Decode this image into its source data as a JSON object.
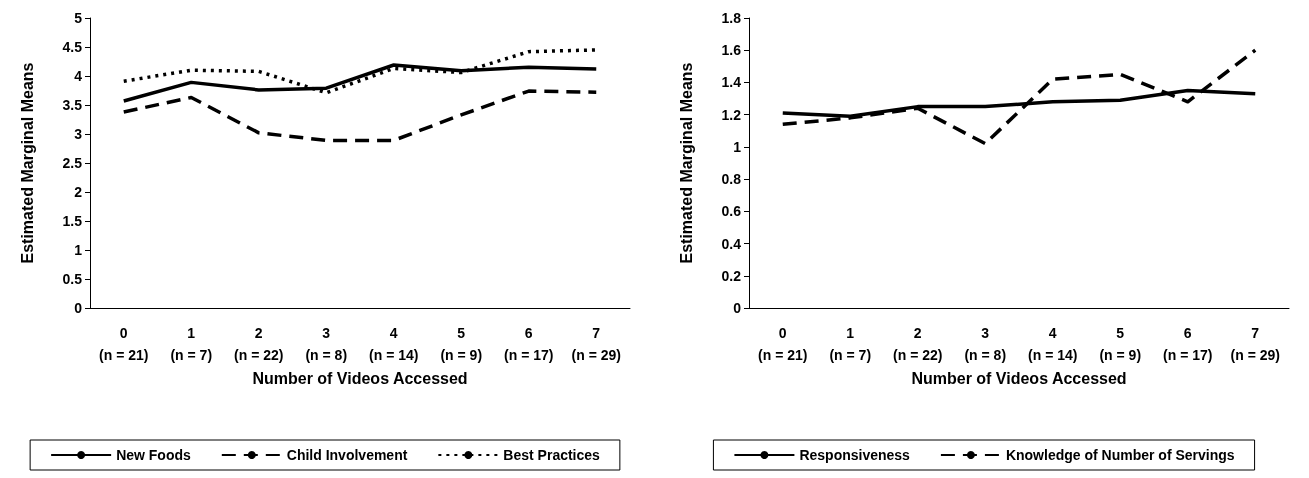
{
  "chart_data": [
    {
      "type": "line",
      "xlabel": "Number of Videos Accessed",
      "ylabel": "Estimated Marginal Means",
      "categories": [
        "0\n(n = 21)",
        "1\n(n = 7)",
        "2\n(n = 22)",
        "3\n(n = 8)",
        "4\n(n = 14)",
        "5\n(n = 9)",
        "6\n(n = 17)",
        "7\n(n = 29)"
      ],
      "ylim": [
        0,
        5
      ],
      "yticks": [
        0,
        0.5,
        1,
        1.5,
        2,
        2.5,
        3,
        3.5,
        4,
        4.5,
        5
      ],
      "grid": false,
      "legend": "bottom",
      "marker": "none",
      "series": [
        {
          "name": "New Foods",
          "color": "#000000",
          "line_style": "solid",
          "values": [
            3.57,
            3.89,
            3.76,
            3.79,
            4.19,
            4.09,
            4.15,
            4.12
          ]
        },
        {
          "name": "Child Involvement",
          "color": "#000000",
          "line_style": "dashed",
          "values": [
            3.38,
            3.63,
            3.02,
            2.89,
            2.89,
            3.33,
            3.74,
            3.72
          ]
        },
        {
          "name": "Best Practices",
          "color": "#000000",
          "line_style": "dotted",
          "values": [
            3.91,
            4.1,
            4.08,
            3.71,
            4.13,
            4.06,
            4.42,
            4.45
          ]
        }
      ]
    },
    {
      "type": "line",
      "xlabel": "Number of Videos Accessed",
      "ylabel": "Estimated Marginal Means",
      "categories": [
        "0\n(n = 21)",
        "1\n(n = 7)",
        "2\n(n = 22)",
        "3\n(n = 8)",
        "4\n(n = 14)",
        "5\n(n = 9)",
        "6\n(n = 17)",
        "7\n(n = 29)"
      ],
      "ylim": [
        0,
        1.8
      ],
      "yticks": [
        0,
        0.2,
        0.4,
        0.6,
        0.8,
        1,
        1.2,
        1.4,
        1.6,
        1.8
      ],
      "grid": false,
      "legend": "bottom",
      "marker": "none",
      "series": [
        {
          "name": "Responsiveness",
          "color": "#000000",
          "line_style": "solid",
          "values": [
            1.21,
            1.19,
            1.25,
            1.25,
            1.28,
            1.29,
            1.35,
            1.33
          ]
        },
        {
          "name": "Knowledge of Number of Servings",
          "color": "#000000",
          "line_style": "dashed",
          "values": [
            1.14,
            1.18,
            1.24,
            1.02,
            1.42,
            1.45,
            1.28,
            1.6
          ]
        }
      ]
    }
  ]
}
